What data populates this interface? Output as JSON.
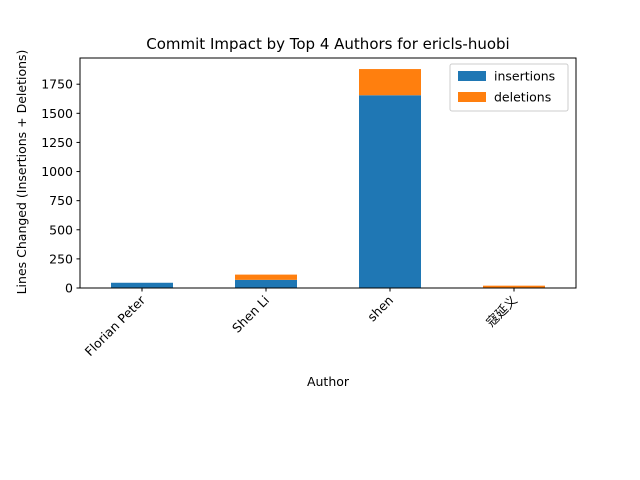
{
  "chart_data": {
    "type": "bar",
    "stacked": true,
    "title": "Commit Impact by Top 4 Authors for ericls-huobi",
    "xlabel": "Author",
    "ylabel": "Lines Changed (Insertions + Deletions)",
    "categories": [
      "Florian Peter",
      "Shen Li",
      "shen",
      "寇延义"
    ],
    "series": [
      {
        "name": "insertions",
        "values": [
          45,
          70,
          1655,
          0
        ],
        "color": "#1f77b4"
      },
      {
        "name": "deletions",
        "values": [
          0,
          45,
          225,
          20
        ],
        "color": "#ff7f0e"
      }
    ],
    "ylim": [
      0,
      1975
    ],
    "yticks": [
      0,
      250,
      500,
      750,
      1000,
      1250,
      1500,
      1750
    ],
    "grid": false,
    "legend_position": "top-right"
  }
}
